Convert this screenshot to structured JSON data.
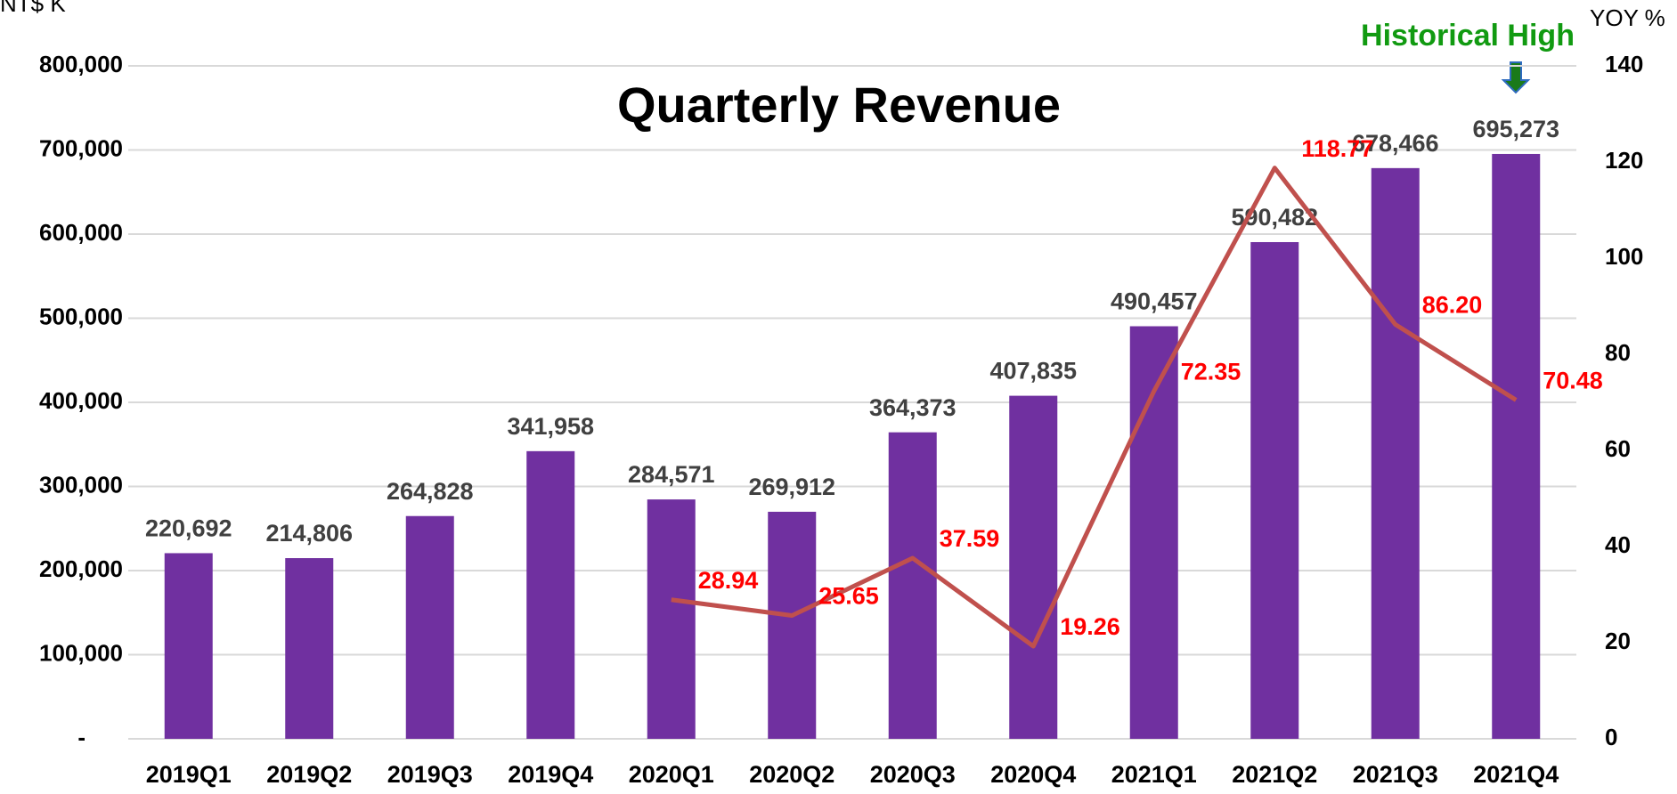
{
  "chart_data": {
    "type": "bar",
    "title": "Quarterly Revenue",
    "y_label": "NT$ K",
    "y2_label": "YOY %",
    "annotation": "Historical High",
    "categories": [
      "2019Q1",
      "2019Q2",
      "2019Q3",
      "2019Q4",
      "2020Q1",
      "2020Q2",
      "2020Q3",
      "2020Q4",
      "2021Q1",
      "2021Q2",
      "2021Q3",
      "2021Q4"
    ],
    "series": [
      {
        "name": "Revenue",
        "type": "bar",
        "color": "#7030a0",
        "values": [
          220692,
          214806,
          264828,
          341958,
          284571,
          269912,
          364373,
          407835,
          490457,
          590482,
          678466,
          695273
        ],
        "value_labels": [
          "220,692",
          "214,806",
          "264,828",
          "341,958",
          "284,571",
          "269,912",
          "364,373",
          "407,835",
          "490,457",
          "590,482",
          "678,466",
          "695,273"
        ]
      },
      {
        "name": "YOY",
        "type": "line",
        "axis": "y2",
        "color": "#c0504d",
        "label_color": "#ff0000",
        "values": [
          null,
          null,
          null,
          null,
          28.94,
          25.65,
          37.59,
          19.26,
          72.35,
          118.77,
          86.2,
          70.48
        ],
        "value_labels": [
          null,
          null,
          null,
          null,
          "28.94",
          "25.65",
          "37.59",
          "19.26",
          "72.35",
          "118.77",
          "86.20",
          "70.48"
        ]
      }
    ],
    "ylim": [
      0,
      800000
    ],
    "yticks": [
      {
        "value": 0,
        "label": "-"
      },
      {
        "value": 100000,
        "label": "100,000"
      },
      {
        "value": 200000,
        "label": "200,000"
      },
      {
        "value": 300000,
        "label": "300,000"
      },
      {
        "value": 400000,
        "label": "400,000"
      },
      {
        "value": 500000,
        "label": "500,000"
      },
      {
        "value": 600000,
        "label": "600,000"
      },
      {
        "value": 700000,
        "label": "700,000"
      },
      {
        "value": 800000,
        "label": "800,000"
      }
    ],
    "y2lim": [
      0,
      140
    ],
    "y2ticks": [
      0,
      20,
      40,
      60,
      80,
      100,
      120,
      140
    ],
    "grid": true
  }
}
